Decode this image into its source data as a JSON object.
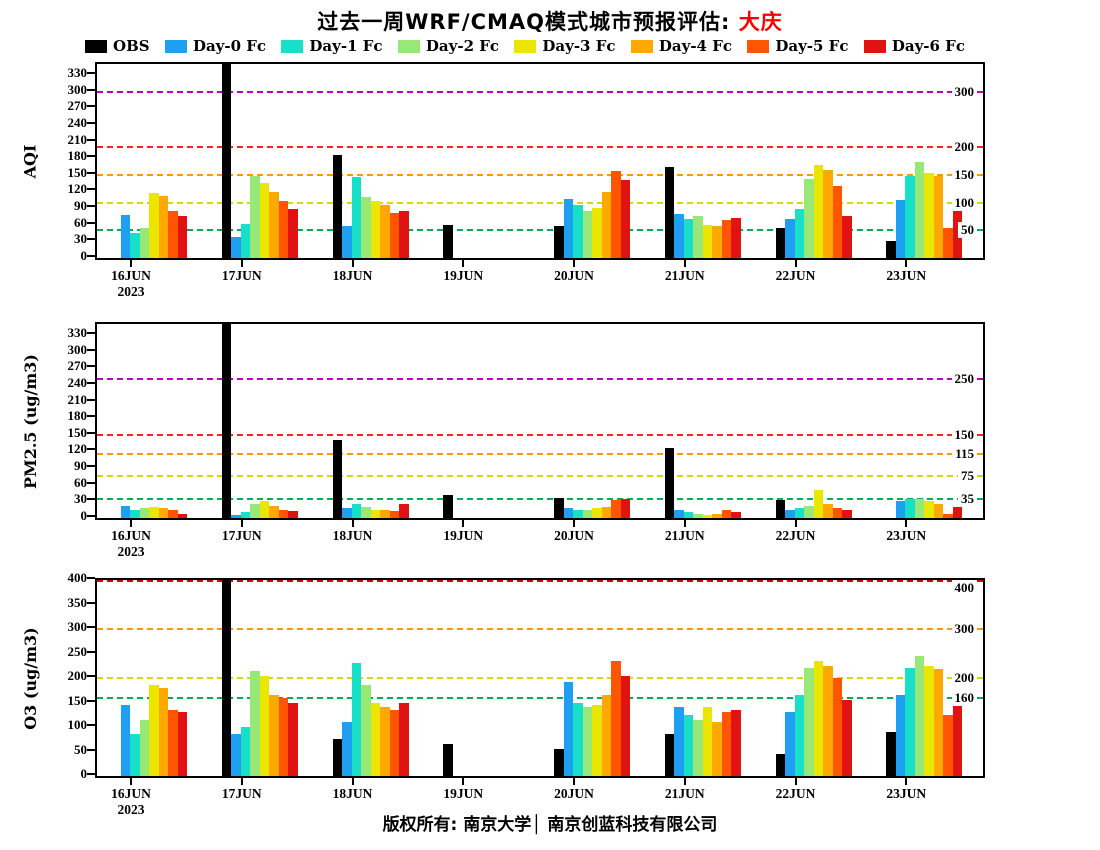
{
  "title": {
    "main": "过去一周WRF/CMAQ模式城市预报评估: ",
    "city": "大庆",
    "city_color": "#ff0000"
  },
  "legend": {
    "items": [
      {
        "label": "OBS",
        "color": "#000000"
      },
      {
        "label": "Day-0 Fc",
        "color": "#1E9FF2"
      },
      {
        "label": "Day-1 Fc",
        "color": "#18E0C8"
      },
      {
        "label": "Day-2 Fc",
        "color": "#98E878"
      },
      {
        "label": "Day-3 Fc",
        "color": "#EAE600"
      },
      {
        "label": "Day-4 Fc",
        "color": "#FFA800"
      },
      {
        "label": "Day-5 Fc",
        "color": "#FF5500"
      },
      {
        "label": "Day-6 Fc",
        "color": "#E11212"
      }
    ]
  },
  "footer": {
    "text": "版权所有: 南京大学│ 南京创蓝科技有限公司"
  },
  "chart_data": [
    {
      "type": "bar",
      "ylabel": "AQI",
      "ylim": [
        0,
        350
      ],
      "yticks": [
        0,
        30,
        60,
        90,
        120,
        150,
        180,
        210,
        240,
        270,
        300,
        330
      ],
      "categories": [
        "16JUN\n2023",
        "17JUN",
        "18JUN",
        "19JUN",
        "20JUN",
        "21JUN",
        "22JUN",
        "23JUN"
      ],
      "thresholds": [
        {
          "value": 50,
          "label": "50",
          "color": "#00B050"
        },
        {
          "value": 100,
          "label": "100",
          "color": "#D9D900"
        },
        {
          "value": 150,
          "label": "150",
          "color": "#FF9900"
        },
        {
          "value": 200,
          "label": "200",
          "color": "#FF2020"
        },
        {
          "value": 300,
          "label": "300",
          "color": "#C000C0"
        }
      ],
      "series": [
        {
          "name": "OBS",
          "color": "#000000",
          "values": [
            0,
            350,
            185,
            60,
            58,
            165,
            55,
            30
          ]
        },
        {
          "name": "Day-0 Fc",
          "color": "#1E9FF2",
          "values": [
            78,
            38,
            57,
            0,
            107,
            80,
            70,
            105
          ]
        },
        {
          "name": "Day-1 Fc",
          "color": "#18E0C8",
          "values": [
            45,
            62,
            147,
            0,
            95,
            70,
            88,
            148
          ]
        },
        {
          "name": "Day-2 Fc",
          "color": "#98E878",
          "values": [
            55,
            148,
            110,
            0,
            85,
            75,
            142,
            173
          ]
        },
        {
          "name": "Day-3 Fc",
          "color": "#EAE600",
          "values": [
            118,
            135,
            103,
            0,
            90,
            60,
            167,
            153
          ]
        },
        {
          "name": "Day-4 Fc",
          "color": "#FFA800",
          "values": [
            112,
            120,
            95,
            0,
            120,
            58,
            158,
            148
          ]
        },
        {
          "name": "Day-5 Fc",
          "color": "#FF5500",
          "values": [
            85,
            103,
            82,
            0,
            157,
            68,
            130,
            55
          ]
        },
        {
          "name": "Day-6 Fc",
          "color": "#E11212",
          "values": [
            75,
            88,
            85,
            0,
            140,
            72,
            75,
            105
          ]
        }
      ]
    },
    {
      "type": "bar",
      "ylabel": "PM2.5 (ug/m3)",
      "ylim": [
        0,
        350
      ],
      "yticks": [
        0,
        30,
        60,
        90,
        120,
        150,
        180,
        210,
        240,
        270,
        300,
        330
      ],
      "categories": [
        "16JUN\n2023",
        "17JUN",
        "18JUN",
        "19JUN",
        "20JUN",
        "21JUN",
        "22JUN",
        "23JUN"
      ],
      "thresholds": [
        {
          "value": 35,
          "label": "35",
          "color": "#00B050"
        },
        {
          "value": 75,
          "label": "75",
          "color": "#D9D900"
        },
        {
          "value": 115,
          "label": "115",
          "color": "#FF9900"
        },
        {
          "value": 150,
          "label": "150",
          "color": "#FF2020"
        },
        {
          "value": 250,
          "label": "250",
          "color": "#C000C0"
        }
      ],
      "series": [
        {
          "name": "OBS",
          "color": "#000000",
          "values": [
            0,
            350,
            140,
            42,
            37,
            127,
            33,
            0
          ]
        },
        {
          "name": "Day-0 Fc",
          "color": "#1E9FF2",
          "values": [
            22,
            5,
            18,
            0,
            18,
            15,
            15,
            30
          ]
        },
        {
          "name": "Day-1 Fc",
          "color": "#18E0C8",
          "values": [
            15,
            10,
            25,
            0,
            15,
            10,
            18,
            35
          ]
        },
        {
          "name": "Day-2 Fc",
          "color": "#98E878",
          "values": [
            18,
            25,
            20,
            0,
            15,
            8,
            22,
            35
          ]
        },
        {
          "name": "Day-3 Fc",
          "color": "#EAE600",
          "values": [
            20,
            30,
            15,
            0,
            18,
            5,
            50,
            30
          ]
        },
        {
          "name": "Day-4 Fc",
          "color": "#FFA800",
          "values": [
            18,
            22,
            15,
            0,
            20,
            8,
            25,
            25
          ]
        },
        {
          "name": "Day-5 Fc",
          "color": "#FF5500",
          "values": [
            15,
            15,
            12,
            0,
            32,
            15,
            18,
            8
          ]
        },
        {
          "name": "Day-6 Fc",
          "color": "#E11212",
          "values": [
            8,
            12,
            25,
            0,
            35,
            10,
            15,
            20
          ]
        }
      ]
    },
    {
      "type": "bar",
      "ylabel": "O3 (ug/m3)",
      "ylim": [
        0,
        400
      ],
      "yticks": [
        0,
        50,
        100,
        150,
        200,
        250,
        300,
        350,
        400
      ],
      "categories": [
        "16JUN\n2023",
        "17JUN",
        "18JUN",
        "19JUN",
        "20JUN",
        "21JUN",
        "22JUN",
        "23JUN"
      ],
      "thresholds": [
        {
          "value": 160,
          "label": "160",
          "color": "#00B050"
        },
        {
          "value": 200,
          "label": "200",
          "color": "#D9D900"
        },
        {
          "value": 300,
          "label": "300",
          "color": "#FF9900"
        },
        {
          "value": 400,
          "label": "400",
          "color": "#E00000"
        }
      ],
      "series": [
        {
          "name": "OBS",
          "color": "#000000",
          "values": [
            0,
            400,
            75,
            65,
            55,
            85,
            45,
            90
          ]
        },
        {
          "name": "Day-0 Fc",
          "color": "#1E9FF2",
          "values": [
            145,
            85,
            110,
            0,
            192,
            140,
            130,
            165
          ]
        },
        {
          "name": "Day-1 Fc",
          "color": "#18E0C8",
          "values": [
            85,
            100,
            230,
            0,
            150,
            125,
            165,
            220
          ]
        },
        {
          "name": "Day-2 Fc",
          "color": "#98E878",
          "values": [
            115,
            215,
            185,
            0,
            140,
            115,
            220,
            245
          ]
        },
        {
          "name": "Day-3 Fc",
          "color": "#EAE600",
          "values": [
            185,
            205,
            150,
            0,
            145,
            140,
            235,
            225
          ]
        },
        {
          "name": "Day-4 Fc",
          "color": "#FFA800",
          "values": [
            180,
            165,
            140,
            0,
            165,
            110,
            225,
            218
          ]
        },
        {
          "name": "Day-5 Fc",
          "color": "#FF5500",
          "values": [
            135,
            160,
            135,
            0,
            235,
            130,
            200,
            125
          ]
        },
        {
          "name": "Day-6 Fc",
          "color": "#E11212",
          "values": [
            130,
            148,
            148,
            0,
            205,
            135,
            155,
            162
          ]
        }
      ]
    }
  ]
}
